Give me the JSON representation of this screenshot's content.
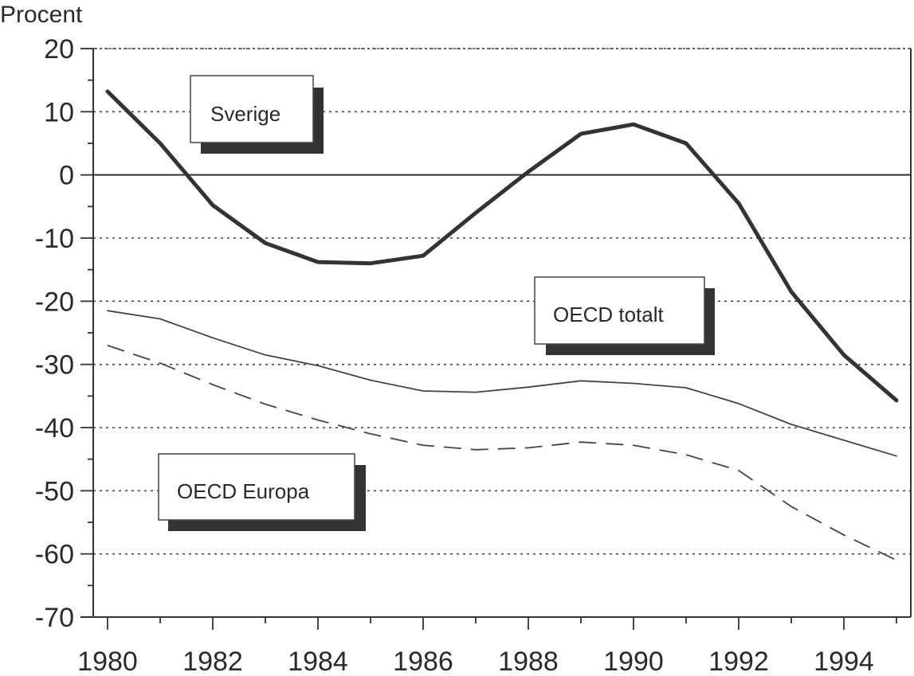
{
  "chart_data": {
    "type": "line",
    "title": "",
    "ylabel": "Procent",
    "xlabel": "",
    "ylim": [
      -70,
      20
    ],
    "xlim": [
      1980,
      1995
    ],
    "grid": true,
    "yticks": [
      20,
      10,
      0,
      -10,
      -20,
      -30,
      -40,
      -50,
      -60,
      -70
    ],
    "ytick_labels": [
      "20",
      "10",
      "0",
      "-10",
      "-20",
      "-30",
      "-40",
      "-50",
      "-60",
      "-70"
    ],
    "xticks": [
      1980,
      1982,
      1984,
      1986,
      1988,
      1990,
      1992,
      1994
    ],
    "xtick_labels": [
      "1980",
      "1982",
      "1984",
      "1986",
      "1988",
      "1990",
      "1992",
      "1994"
    ],
    "x": [
      1980,
      1981,
      1982,
      1983,
      1984,
      1985,
      1986,
      1987,
      1988,
      1989,
      1990,
      1991,
      1992,
      1993,
      1994,
      1995
    ],
    "series": [
      {
        "name": "Sverige",
        "style": "thick",
        "color": "#333333",
        "values": [
          13.2,
          5,
          -4.8,
          -10.8,
          -13.8,
          -14,
          -12.8,
          -6,
          0.5,
          6.5,
          8,
          5,
          -4.5,
          -18.5,
          -28.5,
          -35.7
        ]
      },
      {
        "name": "OECD totalt",
        "style": "thin",
        "color": "#444444",
        "values": [
          -21.5,
          -22.8,
          -25.8,
          -28.5,
          -30.2,
          -32.5,
          -34.2,
          -34.4,
          -33.6,
          -32.6,
          -33,
          -33.7,
          -36.2,
          -39.5,
          -42,
          -44.5
        ]
      },
      {
        "name": "OECD Europa",
        "style": "dashed",
        "color": "#444444",
        "values": [
          -27,
          -29.8,
          -33.2,
          -36.3,
          -38.8,
          -41,
          -42.8,
          -43.5,
          -43.2,
          -42.3,
          -42.8,
          -44.3,
          -46.8,
          -52.5,
          -57,
          -61
        ]
      }
    ],
    "legend_labels": {
      "sverige": "Sverige",
      "oecd_totalt": "OECD totalt",
      "oecd_europa": "OECD Europa"
    }
  }
}
